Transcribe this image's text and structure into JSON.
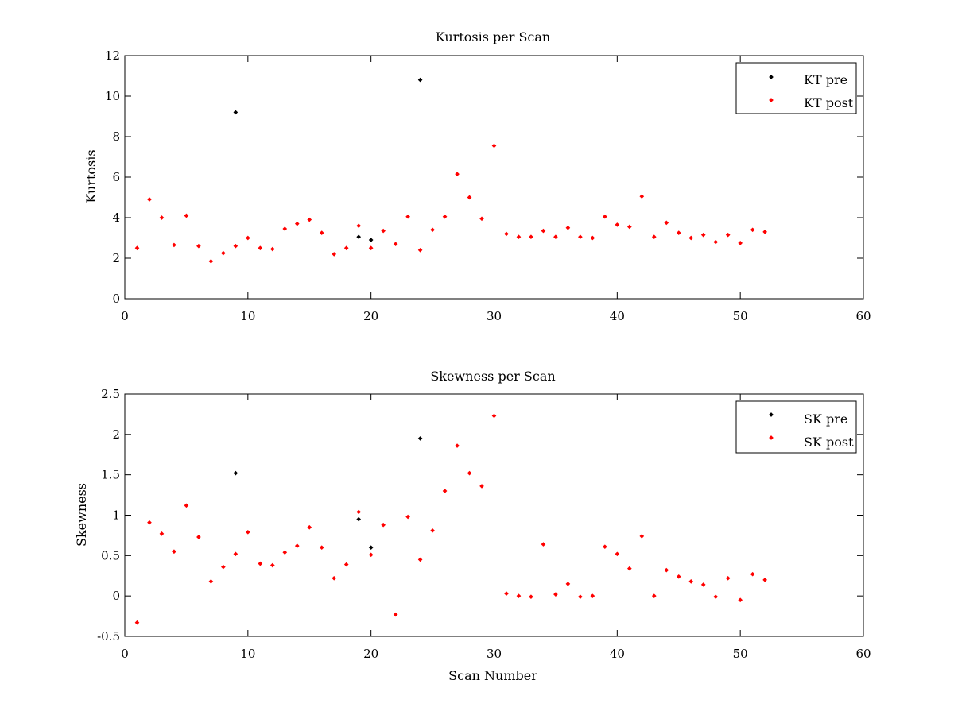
{
  "figure": {
    "background": "#ffffff",
    "series_colors": {
      "pre": "#000000",
      "post": "#ff0000"
    }
  },
  "chart_data": [
    {
      "type": "scatter",
      "title": "Kurtosis per Scan",
      "xlabel": "",
      "ylabel": "Kurtosis",
      "xlim": [
        0,
        60
      ],
      "ylim": [
        0,
        12
      ],
      "xticks": [
        0,
        10,
        20,
        30,
        40,
        50,
        60
      ],
      "yticks": [
        0,
        2,
        4,
        6,
        8,
        10,
        12
      ],
      "ytick_labels": [
        "0",
        "2",
        "4",
        "6",
        "8",
        "10",
        "12"
      ],
      "grid": false,
      "legend_position": "top-right",
      "series": [
        {
          "name": "KT pre",
          "color": "#000000",
          "points": [
            [
              9,
              9.2
            ],
            [
              19,
              3.05
            ],
            [
              20,
              2.9
            ],
            [
              24,
              10.8
            ]
          ]
        },
        {
          "name": "KT post",
          "color": "#ff0000",
          "points": [
            [
              1,
              2.5
            ],
            [
              2,
              4.9
            ],
            [
              3,
              4.0
            ],
            [
              4,
              2.65
            ],
            [
              5,
              4.1
            ],
            [
              6,
              2.6
            ],
            [
              7,
              1.85
            ],
            [
              8,
              2.25
            ],
            [
              9,
              2.6
            ],
            [
              10,
              3.0
            ],
            [
              11,
              2.5
            ],
            [
              12,
              2.45
            ],
            [
              13,
              3.45
            ],
            [
              14,
              3.7
            ],
            [
              15,
              3.9
            ],
            [
              16,
              3.25
            ],
            [
              17,
              2.2
            ],
            [
              18,
              2.5
            ],
            [
              19,
              3.6
            ],
            [
              20,
              2.5
            ],
            [
              21,
              3.35
            ],
            [
              22,
              2.7
            ],
            [
              23,
              4.05
            ],
            [
              24,
              2.4
            ],
            [
              25,
              3.4
            ],
            [
              26,
              4.05
            ],
            [
              27,
              6.15
            ],
            [
              28,
              5.0
            ],
            [
              29,
              3.95
            ],
            [
              30,
              7.55
            ],
            [
              31,
              3.2
            ],
            [
              32,
              3.05
            ],
            [
              33,
              3.05
            ],
            [
              34,
              3.35
            ],
            [
              35,
              3.05
            ],
            [
              36,
              3.5
            ],
            [
              37,
              3.05
            ],
            [
              38,
              3.0
            ],
            [
              39,
              4.05
            ],
            [
              40,
              3.65
            ],
            [
              41,
              3.55
            ],
            [
              42,
              5.05
            ],
            [
              43,
              3.05
            ],
            [
              44,
              3.75
            ],
            [
              45,
              3.25
            ],
            [
              46,
              3.0
            ],
            [
              47,
              3.15
            ],
            [
              48,
              2.8
            ],
            [
              49,
              3.15
            ],
            [
              50,
              2.75
            ],
            [
              51,
              3.4
            ],
            [
              52,
              3.3
            ]
          ]
        }
      ]
    },
    {
      "type": "scatter",
      "title": "Skewness per Scan",
      "xlabel": "Scan Number",
      "ylabel": "Skewness",
      "xlim": [
        0,
        60
      ],
      "ylim": [
        -0.5,
        2.5
      ],
      "xticks": [
        0,
        10,
        20,
        30,
        40,
        50,
        60
      ],
      "yticks": [
        -0.5,
        0,
        0.5,
        1,
        1.5,
        2,
        2.5
      ],
      "ytick_labels": [
        "-0.5",
        "0",
        "0.5",
        "1",
        "1.5",
        "2",
        "2.5"
      ],
      "grid": false,
      "legend_position": "top-right",
      "series": [
        {
          "name": "SK pre",
          "color": "#000000",
          "points": [
            [
              9,
              1.52
            ],
            [
              19,
              0.95
            ],
            [
              20,
              0.6
            ],
            [
              24,
              1.95
            ]
          ]
        },
        {
          "name": "SK post",
          "color": "#ff0000",
          "points": [
            [
              1,
              -0.33
            ],
            [
              2,
              0.91
            ],
            [
              3,
              0.77
            ],
            [
              4,
              0.55
            ],
            [
              5,
              1.12
            ],
            [
              6,
              0.73
            ],
            [
              7,
              0.18
            ],
            [
              8,
              0.36
            ],
            [
              9,
              0.52
            ],
            [
              10,
              0.79
            ],
            [
              11,
              0.4
            ],
            [
              12,
              0.38
            ],
            [
              13,
              0.54
            ],
            [
              14,
              0.62
            ],
            [
              15,
              0.85
            ],
            [
              16,
              0.6
            ],
            [
              17,
              0.22
            ],
            [
              18,
              0.39
            ],
            [
              19,
              1.04
            ],
            [
              20,
              0.51
            ],
            [
              21,
              0.88
            ],
            [
              22,
              -0.23
            ],
            [
              23,
              0.98
            ],
            [
              24,
              0.45
            ],
            [
              25,
              0.81
            ],
            [
              26,
              1.3
            ],
            [
              27,
              1.86
            ],
            [
              28,
              1.52
            ],
            [
              29,
              1.36
            ],
            [
              30,
              2.23
            ],
            [
              31,
              0.03
            ],
            [
              32,
              0.0
            ],
            [
              33,
              -0.01
            ],
            [
              34,
              0.64
            ],
            [
              35,
              0.02
            ],
            [
              36,
              0.15
            ],
            [
              37,
              -0.01
            ],
            [
              38,
              0.0
            ],
            [
              39,
              0.61
            ],
            [
              40,
              0.52
            ],
            [
              41,
              0.34
            ],
            [
              42,
              0.74
            ],
            [
              43,
              0.0
            ],
            [
              44,
              0.32
            ],
            [
              45,
              0.24
            ],
            [
              46,
              0.18
            ],
            [
              47,
              0.14
            ],
            [
              48,
              -0.01
            ],
            [
              49,
              0.22
            ],
            [
              50,
              -0.05
            ],
            [
              51,
              0.27
            ],
            [
              52,
              0.2
            ]
          ]
        }
      ]
    }
  ]
}
